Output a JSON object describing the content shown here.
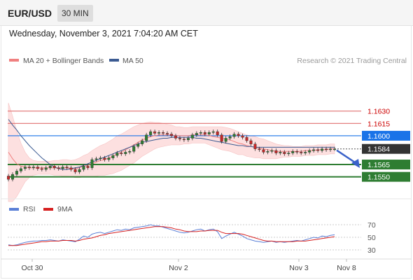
{
  "header": {
    "pair": "EUR/USD",
    "timeframe": "30 MIN",
    "datetime": "Wednesday, November 3, 2021 7:04:20 AM CET"
  },
  "legend": {
    "ma20": "MA 20 + Bollinger Bands",
    "ma50": "MA 50",
    "credit": "Research © 2021 Trading Central",
    "rsi": "RSI",
    "rsi9": "9MA"
  },
  "colors": {
    "candle_up": "#2e7d32",
    "candle_down": "#c62828",
    "bollinger_fill": "#fde0e0",
    "ma20": "#f08080",
    "ma50": "#3b5b92",
    "resistance": "#e07070",
    "pivot": "#1a73e8",
    "support": "#2e7d32",
    "current": "#333333",
    "rsi": "#5a7fd6",
    "rsi9": "#d62020"
  },
  "chart_data": [
    {
      "type": "candlestick",
      "ylim": [
        1.1525,
        1.168
      ],
      "x_ticks": [
        "Oct 30",
        "Nov 2",
        "Nov 3",
        "Nov 8"
      ],
      "levels": [
        {
          "label": "1.1630",
          "value": 1.163,
          "kind": "resistance"
        },
        {
          "label": "1.1615",
          "value": 1.1615,
          "kind": "resistance"
        },
        {
          "label": "1.1600",
          "value": 1.16,
          "kind": "pivot"
        },
        {
          "label": "1.1584",
          "value": 1.1584,
          "kind": "current"
        },
        {
          "label": "1.1565",
          "value": 1.1565,
          "kind": "support"
        },
        {
          "label": "1.1550",
          "value": 1.155,
          "kind": "support"
        }
      ],
      "close": [
        1.1547,
        1.1553,
        1.1557,
        1.156,
        1.1562,
        1.1561,
        1.1562,
        1.156,
        1.1559,
        1.1561,
        1.1563,
        1.1561,
        1.156,
        1.1562,
        1.1561,
        1.1559,
        1.1556,
        1.1559,
        1.1563,
        1.1561,
        1.1571,
        1.1572,
        1.1573,
        1.1571,
        1.1573,
        1.1576,
        1.1579,
        1.1578,
        1.158,
        1.1581,
        1.1587,
        1.159,
        1.1594,
        1.1601,
        1.1605,
        1.1603,
        1.1604,
        1.1603,
        1.1602,
        1.16,
        1.1597,
        1.1596,
        1.1595,
        1.1597,
        1.1601,
        1.1603,
        1.1604,
        1.1602,
        1.1604,
        1.1605,
        1.1601,
        1.1593,
        1.1597,
        1.1599,
        1.1602,
        1.16,
        1.1598,
        1.1594,
        1.159,
        1.1584,
        1.1583,
        1.158,
        1.1581,
        1.1582,
        1.1579,
        1.158,
        1.1578,
        1.1579,
        1.1581,
        1.158,
        1.1579,
        1.158,
        1.1582,
        1.1583,
        1.1582,
        1.1584,
        1.1583,
        1.1584,
        1.1584
      ],
      "ma20": [
        1.158,
        1.1572,
        1.1566,
        1.1563,
        1.1562,
        1.1561,
        1.1561,
        1.1561,
        1.1561,
        1.1561,
        1.1561,
        1.1561,
        1.1561,
        1.1561,
        1.1561,
        1.156,
        1.156,
        1.1561,
        1.1563,
        1.1564,
        1.1566,
        1.1568,
        1.157,
        1.1571,
        1.1573,
        1.1575,
        1.1578,
        1.158,
        1.1583,
        1.1586,
        1.1589,
        1.1592,
        1.1595,
        1.1597,
        1.1599,
        1.16,
        1.1601,
        1.1601,
        1.1601,
        1.1601,
        1.16,
        1.16,
        1.16,
        1.16,
        1.1601,
        1.1601,
        1.1601,
        1.1601,
        1.16,
        1.1599,
        1.1598,
        1.1597,
        1.1596,
        1.1595,
        1.1593,
        1.1591,
        1.159,
        1.1588,
        1.1587,
        1.1586,
        1.1585,
        1.1584,
        1.1583,
        1.1582,
        1.1581,
        1.1581,
        1.1581,
        1.1581,
        1.1581,
        1.1581,
        1.1581,
        1.1582,
        1.1582,
        1.1582,
        1.1583,
        1.1583,
        1.1583,
        1.1584,
        1.1584
      ],
      "ma50": [
        1.162,
        1.1613,
        1.1607,
        1.16,
        1.1594,
        1.1588,
        1.1583,
        1.1578,
        1.1573,
        1.1569,
        1.1565,
        1.1562,
        1.156,
        1.1559,
        1.1559,
        1.156,
        1.1561,
        1.1562,
        1.1564,
        1.1566,
        1.1568,
        1.157,
        1.1572,
        1.1574,
        1.1576,
        1.1578,
        1.158,
        1.1582,
        1.1584,
        1.1586,
        1.1588,
        1.159,
        1.1592,
        1.1593,
        1.1594,
        1.1595,
        1.1596,
        1.1597,
        1.1597,
        1.1598,
        1.1598,
        1.1598,
        1.1598,
        1.1598,
        1.1598,
        1.1597,
        1.1597,
        1.1596,
        1.1595,
        1.1594,
        1.1593,
        1.1592,
        1.1591,
        1.159,
        1.1589,
        1.1588,
        1.1588,
        1.1587,
        1.1587,
        1.1586,
        1.1586,
        1.1586,
        1.1586,
        1.1586,
        1.1586,
        1.1586,
        1.1586,
        1.1586,
        1.1586,
        1.1586,
        1.1586,
        1.1586,
        1.1586,
        1.1586,
        1.1586,
        1.1586,
        1.1586,
        1.1586,
        1.1586
      ],
      "bb_width": [
        0.006,
        0.0052,
        0.004,
        0.0028,
        0.0018,
        0.0012,
        0.0009,
        0.0008,
        0.0008,
        0.0008,
        0.0008,
        0.0009,
        0.0009,
        0.001,
        0.001,
        0.001,
        0.0011,
        0.0012,
        0.0013,
        0.0014,
        0.0016,
        0.0017,
        0.0018,
        0.0019,
        0.002,
        0.0021,
        0.0022,
        0.0022,
        0.0022,
        0.0022,
        0.0022,
        0.0021,
        0.002,
        0.0019,
        0.0018,
        0.0016,
        0.0015,
        0.0014,
        0.0013,
        0.0012,
        0.0011,
        0.0011,
        0.001,
        0.001,
        0.001,
        0.001,
        0.001,
        0.001,
        0.0011,
        0.0012,
        0.0013,
        0.0014,
        0.0014,
        0.0014,
        0.0014,
        0.0014,
        0.0013,
        0.0013,
        0.0013,
        0.0013,
        0.0012,
        0.0012,
        0.0011,
        0.001,
        0.0009,
        0.0008,
        0.0007,
        0.0007,
        0.0006,
        0.0006,
        0.0006,
        0.0006,
        0.0006,
        0.0006,
        0.0006,
        0.0006,
        0.0006,
        0.0006,
        0.0006
      ]
    },
    {
      "type": "line",
      "name": "RSI",
      "ylim": [
        20,
        80
      ],
      "y_ticks": [
        70,
        50,
        30
      ],
      "rsi": [
        38,
        37,
        38,
        40,
        42,
        43,
        44,
        44,
        45,
        45,
        46,
        45,
        44,
        46,
        45,
        44,
        43,
        47,
        52,
        50,
        55,
        57,
        58,
        56,
        58,
        60,
        62,
        61,
        63,
        62,
        65,
        66,
        67,
        68,
        70,
        68,
        68,
        66,
        64,
        62,
        60,
        58,
        57,
        58,
        60,
        62,
        63,
        60,
        62,
        63,
        59,
        48,
        52,
        55,
        58,
        55,
        52,
        48,
        46,
        44,
        43,
        42,
        43,
        44,
        42,
        43,
        42,
        43,
        44,
        45,
        44,
        46,
        48,
        50,
        49,
        52,
        51,
        53,
        54
      ],
      "rsi9": [
        37,
        37,
        37,
        38,
        39,
        40,
        41,
        42,
        43,
        43,
        44,
        44,
        44,
        45,
        45,
        45,
        44,
        45,
        47,
        48,
        49,
        51,
        53,
        54,
        56,
        57,
        58,
        59,
        60,
        61,
        62,
        63,
        64,
        65,
        66,
        67,
        67,
        67,
        66,
        65,
        63,
        62,
        60,
        59,
        59,
        59,
        60,
        60,
        61,
        61,
        61,
        58,
        56,
        56,
        56,
        56,
        55,
        53,
        51,
        49,
        47,
        45,
        44,
        44,
        43,
        43,
        43,
        43,
        43,
        44,
        44,
        44,
        45,
        46,
        47,
        48,
        49,
        50,
        51
      ]
    }
  ]
}
